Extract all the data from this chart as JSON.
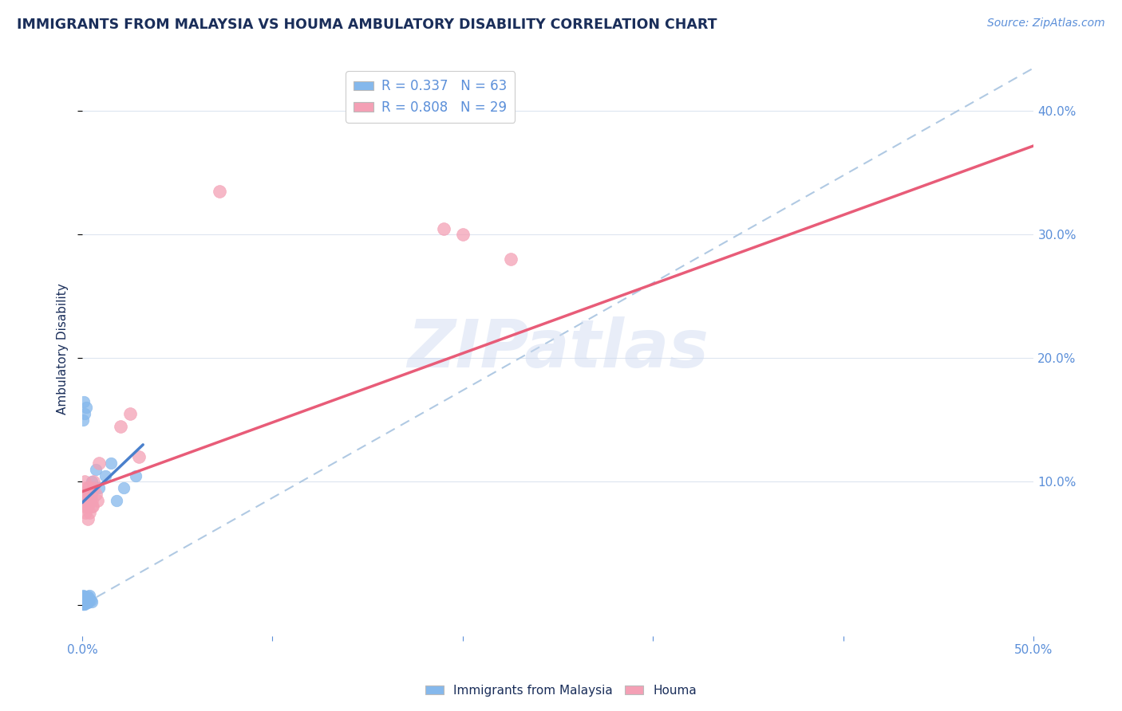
{
  "title": "IMMIGRANTS FROM MALAYSIA VS HOUMA AMBULATORY DISABILITY CORRELATION CHART",
  "source": "Source: ZipAtlas.com",
  "ylabel": "Ambulatory Disability",
  "xlim": [
    0.0,
    0.5
  ],
  "ylim": [
    -0.025,
    0.44
  ],
  "yticks": [
    0.0,
    0.1,
    0.2,
    0.3,
    0.4
  ],
  "xticks": [
    0.0,
    0.1,
    0.2,
    0.3,
    0.4,
    0.5
  ],
  "yticklabels_right": [
    "",
    "10.0%",
    "20.0%",
    "30.0%",
    "40.0%"
  ],
  "xticklabels": [
    "0.0%",
    "",
    "",
    "",
    "",
    "50.0%"
  ],
  "background_color": "#ffffff",
  "grid_color": "#dde5f0",
  "title_color": "#1a2e5a",
  "tick_color": "#5b8fd9",
  "blue_color": "#85b8ec",
  "pink_color": "#f4a0b5",
  "blue_line_color": "#4a80cc",
  "pink_line_color": "#e85c78",
  "dashed_line_color": "#a8c4e0",
  "legend_R1": "R = 0.337",
  "legend_N1": "N = 63",
  "legend_R2": "R = 0.808",
  "legend_N2": "N = 29",
  "watermark": "ZIPatlas",
  "blue_line_x": [
    0.0,
    0.032
  ],
  "blue_line_y": [
    0.083,
    0.13
  ],
  "pink_line_x": [
    0.0,
    0.5
  ],
  "pink_line_y": [
    0.092,
    0.372
  ],
  "dashed_line_x": [
    0.0,
    0.5
  ],
  "dashed_line_y": [
    0.0,
    0.435
  ],
  "blue_pts_x": [
    0.0005,
    0.0008,
    0.001,
    0.0012,
    0.0015,
    0.0018,
    0.002,
    0.0022,
    0.0025,
    0.003,
    0.0008,
    0.001,
    0.0015,
    0.002,
    0.0025,
    0.003,
    0.0035,
    0.004,
    0.0045,
    0.005,
    0.0005,
    0.001,
    0.0015,
    0.002,
    0.0005,
    0.001,
    0.0015,
    0.002,
    0.0025,
    0.003,
    0.0005,
    0.0008,
    0.001,
    0.0012,
    0.0015,
    0.002,
    0.0025,
    0.003,
    0.0035,
    0.004,
    0.0005,
    0.001,
    0.0015,
    0.002,
    0.0025,
    0.003,
    0.0005,
    0.001,
    0.0015,
    0.002,
    0.0005,
    0.0008,
    0.001,
    0.0015,
    0.003,
    0.005,
    0.007,
    0.009,
    0.012,
    0.015,
    0.018,
    0.022,
    0.028
  ],
  "blue_pts_y": [
    0.005,
    0.004,
    0.003,
    0.006,
    0.004,
    0.005,
    0.003,
    0.006,
    0.004,
    0.005,
    0.002,
    0.003,
    0.004,
    0.005,
    0.003,
    0.004,
    0.006,
    0.005,
    0.004,
    0.003,
    0.007,
    0.006,
    0.005,
    0.004,
    0.001,
    0.002,
    0.003,
    0.004,
    0.003,
    0.002,
    0.008,
    0.007,
    0.006,
    0.005,
    0.007,
    0.006,
    0.005,
    0.007,
    0.006,
    0.008,
    0.002,
    0.001,
    0.003,
    0.002,
    0.004,
    0.003,
    0.15,
    0.165,
    0.155,
    0.16,
    0.001,
    0.002,
    0.003,
    0.001,
    0.09,
    0.1,
    0.11,
    0.095,
    0.105,
    0.115,
    0.085,
    0.095,
    0.105
  ],
  "pink_pts_x": [
    0.001,
    0.0015,
    0.002,
    0.0008,
    0.0012,
    0.0018,
    0.002,
    0.0025,
    0.003,
    0.0035,
    0.004,
    0.0045,
    0.005,
    0.0055,
    0.006,
    0.003,
    0.004,
    0.005,
    0.006,
    0.007,
    0.008,
    0.009,
    0.02,
    0.025,
    0.03,
    0.072,
    0.19,
    0.2,
    0.225
  ],
  "pink_pts_y": [
    0.09,
    0.08,
    0.095,
    0.085,
    0.1,
    0.075,
    0.09,
    0.085,
    0.08,
    0.095,
    0.075,
    0.09,
    0.085,
    0.08,
    0.095,
    0.07,
    0.085,
    0.08,
    0.1,
    0.09,
    0.085,
    0.115,
    0.145,
    0.155,
    0.12,
    0.335,
    0.305,
    0.3,
    0.28
  ]
}
